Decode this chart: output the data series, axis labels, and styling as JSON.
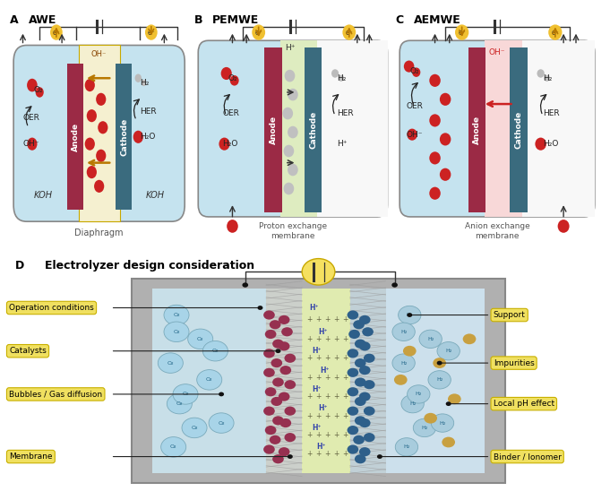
{
  "title_A": "AWE",
  "title_B": "PEMWE",
  "title_C": "AEMWE",
  "title_D": "Electrolyzer design consideration",
  "label_A": "A",
  "label_B": "B",
  "label_C": "C",
  "label_D": "D",
  "bg_light_blue": "#c5e3ef",
  "bg_cream": "#f5f0d0",
  "bg_light_green": "#deecc0",
  "bg_white": "#f8f8f8",
  "anode_color": "#9b2a45",
  "cathode_color": "#3a6b7e",
  "red_dot": "#cc2222",
  "gray_dot": "#bbbbbb",
  "brown_dot": "#c8a040",
  "arrow_orange": "#b87800",
  "arrow_red": "#cc2222",
  "gray_box": "#a0a0a0",
  "left_labels": [
    "Operation conditions",
    "Catalysts",
    "Bubbles / Gas diffusion",
    "Membrane"
  ],
  "right_labels": [
    "Support",
    "Impurities",
    "Local pH effect",
    "Binder / Ionomer"
  ],
  "anode_red_dark": "#963050",
  "cathode_blue_dark": "#2e6080"
}
